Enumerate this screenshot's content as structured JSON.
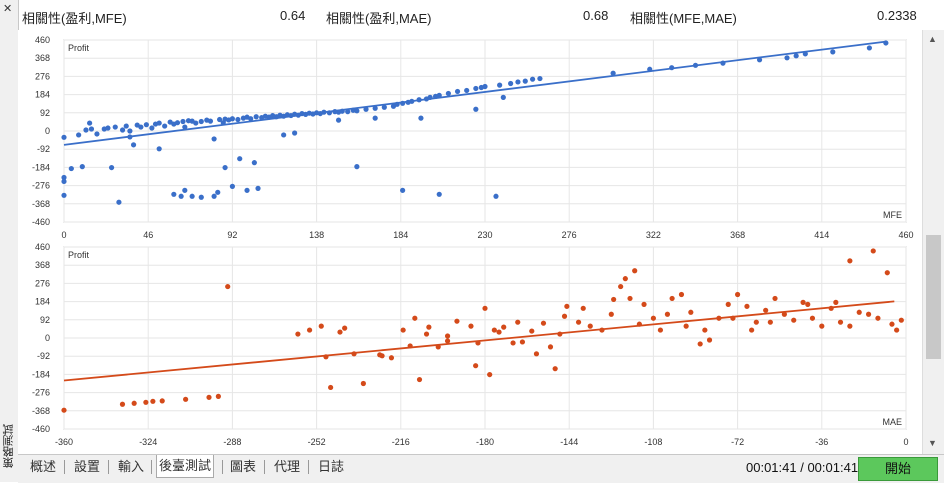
{
  "sidebar": {
    "close_icon": "close-icon",
    "title": "策略測試"
  },
  "correlation": {
    "profit_mfe_label": "相關性(盈利,MFE)",
    "profit_mfe_value": "0.64",
    "profit_mae_label": "相關性(盈利,MAE)",
    "profit_mae_value": "0.68",
    "mfe_mae_label": "相關性(MFE,MAE)",
    "mfe_mae_value": "0.2338"
  },
  "charts": {
    "y_ticks": [
      "460",
      "368",
      "276",
      "184",
      "92",
      "0",
      "-92",
      "-184",
      "-276",
      "-368",
      "-460"
    ],
    "mfe_x_ticks": [
      "0",
      "46",
      "92",
      "138",
      "184",
      "230",
      "276",
      "322",
      "368",
      "414",
      "460"
    ],
    "mae_x_ticks": [
      "-360",
      "-324",
      "-288",
      "-252",
      "-216",
      "-180",
      "-144",
      "-108",
      "-72",
      "-36",
      "0"
    ]
  },
  "chart_data": [
    {
      "type": "scatter",
      "ylabel": "Profit",
      "xlabel": "MFE",
      "xlim": [
        0,
        460
      ],
      "ylim": [
        -460,
        460
      ],
      "grid": true,
      "color": "#3a6fc9",
      "trendline": {
        "x": [
          0,
          449
        ],
        "y": [
          -70,
          452
        ]
      },
      "points": [
        [
          0,
          -32
        ],
        [
          0,
          -235
        ],
        [
          0,
          -255
        ],
        [
          0,
          -325
        ],
        [
          4,
          -190
        ],
        [
          8,
          -20
        ],
        [
          10,
          -180
        ],
        [
          12,
          5
        ],
        [
          15,
          10
        ],
        [
          18,
          -15
        ],
        [
          22,
          10
        ],
        [
          26,
          -185
        ],
        [
          28,
          20
        ],
        [
          32,
          5
        ],
        [
          34,
          25
        ],
        [
          36,
          -30
        ],
        [
          38,
          -70
        ],
        [
          40,
          30
        ],
        [
          42,
          20
        ],
        [
          45,
          32
        ],
        [
          48,
          15
        ],
        [
          50,
          35
        ],
        [
          52,
          40
        ],
        [
          55,
          25
        ],
        [
          58,
          45
        ],
        [
          60,
          35
        ],
        [
          62,
          42
        ],
        [
          65,
          48
        ],
        [
          66,
          20
        ],
        [
          68,
          52
        ],
        [
          70,
          50
        ],
        [
          72,
          40
        ],
        [
          75,
          48
        ],
        [
          78,
          55
        ],
        [
          80,
          50
        ],
        [
          82,
          -40
        ],
        [
          85,
          58
        ],
        [
          87,
          42
        ],
        [
          88,
          60
        ],
        [
          90,
          56
        ],
        [
          92,
          62
        ],
        [
          95,
          58
        ],
        [
          98,
          65
        ],
        [
          100,
          70
        ],
        [
          102,
          62
        ],
        [
          105,
          72
        ],
        [
          108,
          68
        ],
        [
          110,
          75
        ],
        [
          112,
          70
        ],
        [
          114,
          78
        ],
        [
          116,
          72
        ],
        [
          118,
          80
        ],
        [
          120,
          75
        ],
        [
          122,
          82
        ],
        [
          124,
          78
        ],
        [
          126,
          85
        ],
        [
          128,
          80
        ],
        [
          130,
          88
        ],
        [
          132,
          84
        ],
        [
          134,
          90
        ],
        [
          136,
          86
        ],
        [
          138,
          92
        ],
        [
          140,
          88
        ],
        [
          142,
          95
        ],
        [
          145,
          92
        ],
        [
          148,
          98
        ],
        [
          150,
          95
        ],
        [
          152,
          100
        ],
        [
          155,
          98
        ],
        [
          158,
          105
        ],
        [
          160,
          102
        ],
        [
          165,
          110
        ],
        [
          170,
          115
        ],
        [
          175,
          120
        ],
        [
          180,
          125
        ],
        [
          182,
          135
        ],
        [
          185,
          140
        ],
        [
          188,
          145
        ],
        [
          190,
          150
        ],
        [
          194,
          158
        ],
        [
          198,
          162
        ],
        [
          200,
          170
        ],
        [
          203,
          175
        ],
        [
          205,
          180
        ],
        [
          210,
          190
        ],
        [
          215,
          200
        ],
        [
          220,
          205
        ],
        [
          225,
          215
        ],
        [
          228,
          220
        ],
        [
          230,
          225
        ],
        [
          238,
          232
        ],
        [
          244,
          240
        ],
        [
          248,
          248
        ],
        [
          252,
          252
        ],
        [
          256,
          262
        ],
        [
          260,
          265
        ],
        [
          300,
          292
        ],
        [
          320,
          312
        ],
        [
          332,
          320
        ],
        [
          345,
          332
        ],
        [
          360,
          343
        ],
        [
          380,
          360
        ],
        [
          395,
          370
        ],
        [
          400,
          380
        ],
        [
          405,
          390
        ],
        [
          420,
          400
        ],
        [
          440,
          420
        ],
        [
          449,
          445
        ],
        [
          52,
          -90
        ],
        [
          60,
          -320
        ],
        [
          66,
          -300
        ],
        [
          70,
          -330
        ],
        [
          75,
          -335
        ],
        [
          82,
          -330
        ],
        [
          84,
          -310
        ],
        [
          88,
          -185
        ],
        [
          92,
          -280
        ],
        [
          96,
          -140
        ],
        [
          100,
          -300
        ],
        [
          104,
          -160
        ],
        [
          106,
          -290
        ],
        [
          120,
          -20
        ],
        [
          126,
          -10
        ],
        [
          150,
          55
        ],
        [
          160,
          -180
        ],
        [
          170,
          65
        ],
        [
          185,
          -300
        ],
        [
          195,
          65
        ],
        [
          205,
          -320
        ],
        [
          225,
          110
        ],
        [
          236,
          -330
        ],
        [
          240,
          170
        ],
        [
          14,
          40
        ],
        [
          24,
          15
        ],
        [
          30,
          -360
        ],
        [
          36,
          0
        ],
        [
          64,
          -330
        ]
      ]
    },
    {
      "type": "scatter",
      "ylabel": "Profit",
      "xlabel": "MAE",
      "xlim": [
        -360,
        0
      ],
      "ylim": [
        -460,
        460
      ],
      "grid": true,
      "color": "#d44a1a",
      "trendline": {
        "x": [
          -360,
          -5
        ],
        "y": [
          -215,
          185
        ]
      },
      "points": [
        [
          -360,
          -365
        ],
        [
          -335,
          -335
        ],
        [
          -330,
          -330
        ],
        [
          -325,
          -325
        ],
        [
          -322,
          -320
        ],
        [
          -318,
          -318
        ],
        [
          -308,
          -310
        ],
        [
          -298,
          -300
        ],
        [
          -294,
          -295
        ],
        [
          -290,
          260
        ],
        [
          -260,
          20
        ],
        [
          -255,
          40
        ],
        [
          -250,
          60
        ],
        [
          -248,
          -95
        ],
        [
          -246,
          -250
        ],
        [
          -240,
          50
        ],
        [
          -232,
          -230
        ],
        [
          -225,
          -85
        ],
        [
          -220,
          -100
        ],
        [
          -215,
          40
        ],
        [
          -210,
          100
        ],
        [
          -208,
          -210
        ],
        [
          -205,
          20
        ],
        [
          -200,
          -45
        ],
        [
          -196,
          -15
        ],
        [
          -192,
          85
        ],
        [
          -186,
          60
        ],
        [
          -183,
          -25
        ],
        [
          -180,
          150
        ],
        [
          -178,
          -185
        ],
        [
          -176,
          40
        ],
        [
          -172,
          55
        ],
        [
          -168,
          -25
        ],
        [
          -164,
          -20
        ],
        [
          -160,
          35
        ],
        [
          -155,
          75
        ],
        [
          -152,
          -45
        ],
        [
          -150,
          -155
        ],
        [
          -148,
          20
        ],
        [
          -145,
          160
        ],
        [
          -140,
          80
        ],
        [
          -135,
          60
        ],
        [
          -130,
          40
        ],
        [
          -125,
          195
        ],
        [
          -122,
          260
        ],
        [
          -120,
          300
        ],
        [
          -118,
          200
        ],
        [
          -116,
          340
        ],
        [
          -112,
          170
        ],
        [
          -108,
          100
        ],
        [
          -105,
          40
        ],
        [
          -100,
          200
        ],
        [
          -96,
          220
        ],
        [
          -92,
          130
        ],
        [
          -88,
          -30
        ],
        [
          -84,
          -10
        ],
        [
          -80,
          100
        ],
        [
          -76,
          170
        ],
        [
          -72,
          220
        ],
        [
          -68,
          160
        ],
        [
          -64,
          80
        ],
        [
          -60,
          140
        ],
        [
          -56,
          200
        ],
        [
          -52,
          120
        ],
        [
          -48,
          90
        ],
        [
          -44,
          180
        ],
        [
          -40,
          100
        ],
        [
          -36,
          60
        ],
        [
          -32,
          150
        ],
        [
          -28,
          80
        ],
        [
          -24,
          60
        ],
        [
          -20,
          130
        ],
        [
          -16,
          120
        ],
        [
          -12,
          100
        ],
        [
          -8,
          330
        ],
        [
          -6,
          70
        ],
        [
          -4,
          40
        ],
        [
          -2,
          90
        ],
        [
          -14,
          440
        ],
        [
          -24,
          390
        ],
        [
          -30,
          180
        ],
        [
          -42,
          170
        ],
        [
          -58,
          80
        ],
        [
          -66,
          40
        ],
        [
          -74,
          100
        ],
        [
          -86,
          40
        ],
        [
          -94,
          60
        ],
        [
          -102,
          120
        ],
        [
          -114,
          70
        ],
        [
          -126,
          120
        ],
        [
          -138,
          150
        ],
        [
          -146,
          110
        ],
        [
          -158,
          -80
        ],
        [
          -166,
          80
        ],
        [
          -174,
          30
        ],
        [
          -184,
          -140
        ],
        [
          -196,
          10
        ],
        [
          -204,
          55
        ],
        [
          -212,
          -40
        ],
        [
          -224,
          -90
        ],
        [
          -236,
          -80
        ],
        [
          -242,
          30
        ]
      ]
    }
  ],
  "bottom": {
    "tabs": [
      "概述",
      "設置",
      "輸入",
      "後臺測試",
      "圖表",
      "代理",
      "日誌"
    ],
    "active_tab": "後臺測試",
    "time": "00:01:41 / 00:01:41",
    "start_label": "開始",
    "start_color": "#5cc85c"
  },
  "scrollbar": {
    "up_icon": "chevron-up-icon",
    "down_icon": "chevron-down-icon"
  }
}
